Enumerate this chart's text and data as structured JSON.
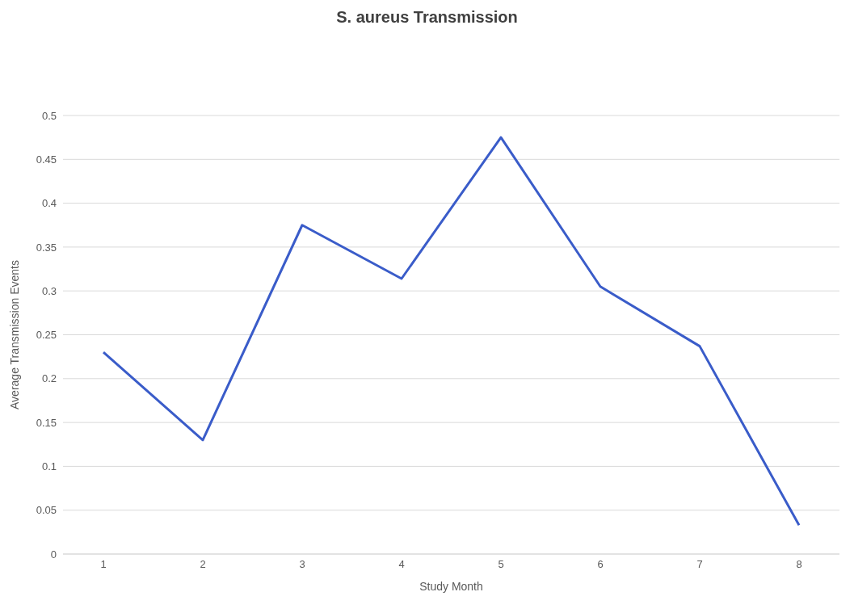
{
  "chart_data": {
    "type": "line",
    "title": "S. aureus Transmission",
    "xlabel": "Study Month",
    "ylabel": "Average Transmission Events",
    "categories": [
      "1",
      "2",
      "3",
      "4",
      "5",
      "6",
      "7",
      "8"
    ],
    "series": [
      {
        "color": "#3a5cc9",
        "values": [
          0.23,
          0.13,
          0.375,
          0.314,
          0.475,
          0.305,
          0.237,
          0.033
        ]
      }
    ],
    "ylim": [
      0,
      0.5
    ],
    "yticks": [
      0,
      0.05,
      0.1,
      0.15,
      0.2,
      0.25,
      0.3,
      0.35,
      0.4,
      0.45,
      0.5
    ],
    "grid": "y",
    "legend": false,
    "marker": "none",
    "line_style": "solid"
  }
}
